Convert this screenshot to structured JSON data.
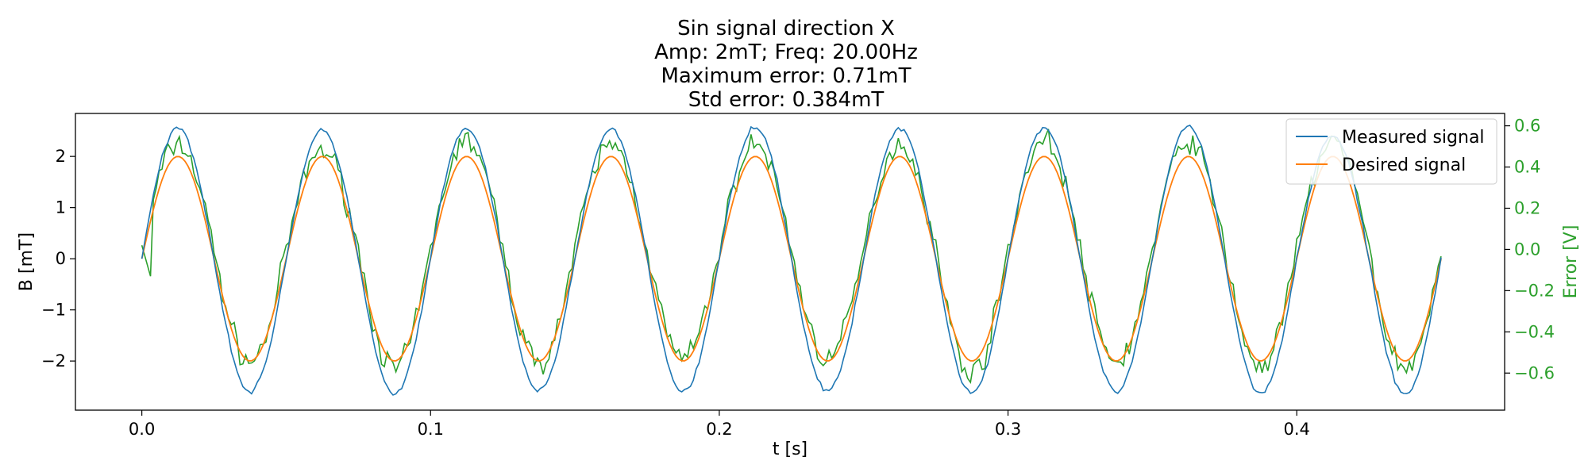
{
  "chart_data": {
    "type": "line",
    "title_lines": [
      "Sin signal direction X",
      "Amp: 2mT; Freq: 20.00Hz",
      "Maximum error: 0.71mT",
      "Std error: 0.384mT"
    ],
    "xlabel": "t [s]",
    "ylabel": "B [mT]",
    "y2label": "Error [V]",
    "xlim": [
      -0.023,
      0.472
    ],
    "ylim": [
      -2.96,
      2.84
    ],
    "y2lim": [
      -0.78,
      0.66
    ],
    "xticks": [
      0.0,
      0.1,
      0.2,
      0.3,
      0.4
    ],
    "xtick_labels": [
      "0.0",
      "0.1",
      "0.2",
      "0.3",
      "0.4"
    ],
    "yticks": [
      -2,
      -1,
      0,
      1,
      2
    ],
    "ytick_labels": [
      "−2",
      "−1",
      "0",
      "1",
      "2"
    ],
    "y2ticks": [
      -0.6,
      -0.4,
      -0.2,
      0.0,
      0.2,
      0.4,
      0.6
    ],
    "y2tick_labels": [
      "−0.6",
      "−0.4",
      "−0.2",
      "0.0",
      "0.2",
      "0.4",
      "0.6"
    ],
    "grid": false,
    "legend_position": "top-right",
    "frequency_hz": 20,
    "sample_period_s": 0.001,
    "t_end_s": 0.45,
    "series": [
      {
        "name": "Measured signal",
        "color": "#1f77b4",
        "axis": "left",
        "amplitude_mT": 2.5,
        "peaks_mT": [
          2.55,
          2.5,
          2.55,
          2.52,
          2.58,
          2.55,
          2.55,
          2.6,
          2.4
        ],
        "troughs_mT": [
          -2.6,
          -2.65,
          -2.58,
          -2.6,
          -2.58,
          -2.62,
          -2.6,
          -2.62,
          -2.65
        ]
      },
      {
        "name": "Desired signal",
        "color": "#ff7f0e",
        "axis": "left",
        "amplitude_mT": 2.0
      },
      {
        "name": "Error",
        "color": "#2ca02c",
        "axis": "right",
        "amplitude_V": 0.5,
        "peaks_V": [
          0.58,
          0.55,
          0.6,
          0.58,
          0.58,
          0.58,
          0.6,
          0.6,
          0.6
        ],
        "troughs_V": [
          -0.62,
          -0.66,
          -0.62,
          -0.6,
          -0.6,
          -0.68,
          -0.62,
          -0.65,
          -0.66
        ]
      }
    ]
  }
}
